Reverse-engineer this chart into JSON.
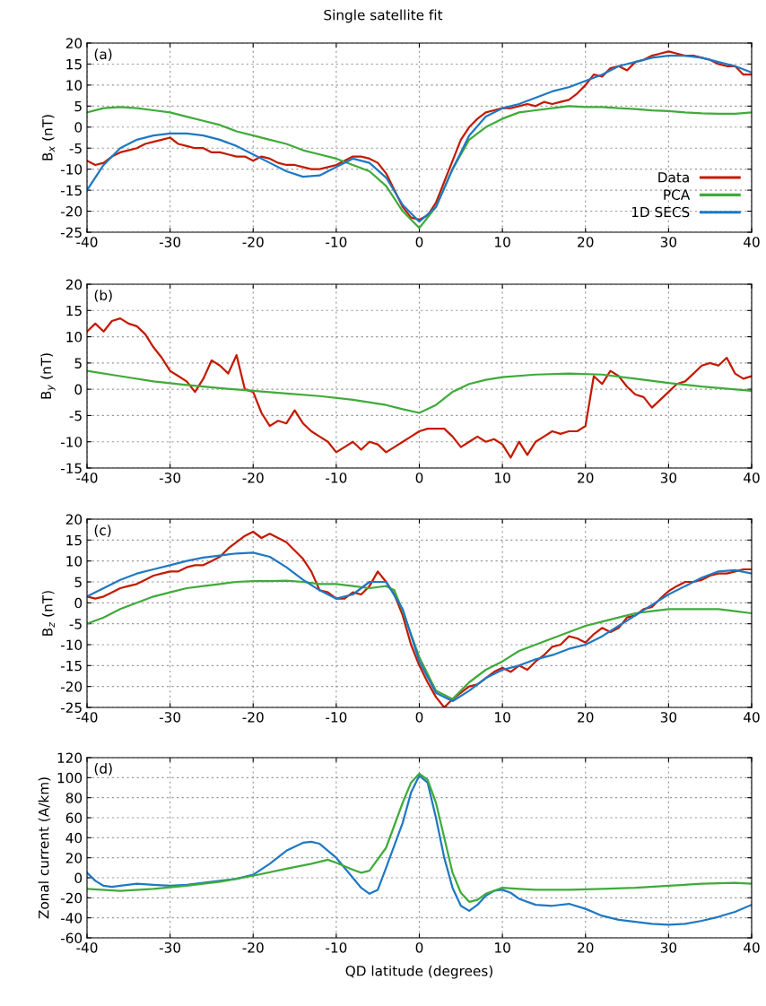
{
  "chart_data": [
    {
      "type": "line",
      "title": "Single satellite fit",
      "ylabel": "B$_{x}$ (nT)",
      "annotations": [
        "(a)"
      ],
      "xlim": [
        -40,
        40
      ],
      "xticks": [
        -40,
        -30,
        -20,
        -10,
        0,
        10,
        20,
        30,
        40
      ],
      "ylim": [
        -25,
        20
      ],
      "yticks": [
        -25,
        -20,
        -15,
        -10,
        -5,
        0,
        5,
        10,
        15,
        20
      ],
      "grid": true,
      "legend": "bottom right",
      "line_style": "solid",
      "marker": "none",
      "series": [
        {
          "name": "Data",
          "color": "#c41a00",
          "x": [
            -40,
            -39,
            -38,
            -37,
            -36,
            -35,
            -34,
            -33,
            -32,
            -31,
            -30,
            -29,
            -28,
            -27,
            -26,
            -25,
            -24,
            -23,
            -22,
            -21,
            -20,
            -19,
            -18,
            -17,
            -16,
            -15,
            -14,
            -13,
            -12,
            -11,
            -10,
            -9,
            -8,
            -7,
            -6,
            -5,
            -4,
            -3,
            -2,
            -1,
            0,
            1,
            2,
            3,
            4,
            5,
            6,
            7,
            8,
            9,
            10,
            11,
            12,
            13,
            14,
            15,
            16,
            17,
            18,
            19,
            20,
            21,
            22,
            23,
            24,
            25,
            26,
            27,
            28,
            29,
            30,
            31,
            32,
            33,
            34,
            35,
            36,
            37,
            38,
            39,
            40
          ],
          "values": [
            -8,
            -9,
            -8.5,
            -7,
            -6,
            -5.5,
            -5,
            -4,
            -3.5,
            -3,
            -2.5,
            -4,
            -4.5,
            -5,
            -5,
            -6,
            -6,
            -6.5,
            -7,
            -7,
            -8,
            -7,
            -7.5,
            -8.5,
            -9,
            -9,
            -9.5,
            -10,
            -10,
            -9.5,
            -9,
            -8,
            -7,
            -7,
            -7.5,
            -8.5,
            -11,
            -15,
            -19,
            -21.5,
            -22,
            -21,
            -18,
            -13,
            -8,
            -3,
            0,
            2,
            3.5,
            4,
            4.5,
            4.5,
            5,
            5.5,
            5,
            6,
            5.5,
            6,
            6.5,
            8,
            10,
            12.5,
            12,
            14,
            14.5,
            13.5,
            15.5,
            16,
            17,
            17.5,
            18,
            17.5,
            17,
            17,
            16.5,
            16,
            15,
            14.5,
            14.5,
            12.5,
            12.5
          ]
        },
        {
          "name": "PCA",
          "color": "#3fab3a",
          "x": [
            -40,
            -38,
            -36,
            -34,
            -32,
            -30,
            -28,
            -26,
            -24,
            -22,
            -20,
            -18,
            -16,
            -14,
            -12,
            -10,
            -8,
            -6,
            -4,
            -2,
            0,
            2,
            4,
            6,
            8,
            10,
            12,
            14,
            16,
            18,
            20,
            22,
            24,
            26,
            28,
            30,
            32,
            34,
            36,
            38,
            40
          ],
          "values": [
            3.5,
            4.5,
            4.8,
            4.5,
            4,
            3.5,
            2.5,
            1.5,
            0.5,
            -1,
            -2,
            -3,
            -4,
            -5.5,
            -6.5,
            -7.5,
            -9,
            -10.5,
            -14,
            -20,
            -24,
            -19,
            -10,
            -3,
            0,
            2,
            3.5,
            4,
            4.5,
            5,
            4.8,
            4.8,
            4.5,
            4.3,
            4,
            3.8,
            3.5,
            3.3,
            3.2,
            3.2,
            3.5
          ]
        },
        {
          "name": "1D SECS",
          "color": "#1f78c4",
          "x": [
            -40,
            -38,
            -36,
            -34,
            -32,
            -30,
            -28,
            -26,
            -24,
            -22,
            -20,
            -18,
            -16,
            -14,
            -12,
            -10,
            -8,
            -6,
            -4,
            -2,
            0,
            2,
            4,
            6,
            8,
            10,
            12,
            14,
            16,
            18,
            20,
            22,
            24,
            26,
            28,
            30,
            32,
            34,
            36,
            38,
            40
          ],
          "values": [
            -15,
            -9,
            -5,
            -3,
            -2,
            -1.5,
            -1.5,
            -2,
            -3,
            -4.5,
            -6.5,
            -8.5,
            -10.5,
            -11.8,
            -11.5,
            -9.5,
            -7.5,
            -8.5,
            -12,
            -18.5,
            -22.5,
            -19,
            -10,
            -2,
            2.5,
            4.5,
            5.5,
            7,
            8.5,
            9.5,
            11,
            12.5,
            14.5,
            15.5,
            16.5,
            17,
            17,
            16.5,
            15.5,
            14.5,
            13
          ]
        }
      ]
    },
    {
      "type": "line",
      "ylabel": "B$_{y}$ (nT)",
      "annotations": [
        "(b)"
      ],
      "xlim": [
        -40,
        40
      ],
      "xticks": [
        -40,
        -30,
        -20,
        -10,
        0,
        10,
        20,
        30,
        40
      ],
      "ylim": [
        -15,
        20
      ],
      "yticks": [
        -15,
        -10,
        -5,
        0,
        5,
        10,
        15,
        20
      ],
      "grid": true,
      "line_style": "solid",
      "marker": "none",
      "series": [
        {
          "color": "#c41a00",
          "x": [
            -40,
            -39,
            -38,
            -37,
            -36,
            -35,
            -34,
            -33,
            -32,
            -31,
            -30,
            -29,
            -28,
            -27,
            -26,
            -25,
            -24,
            -23,
            -22,
            -21,
            -20,
            -19,
            -18,
            -17,
            -16,
            -15,
            -14,
            -13,
            -12,
            -11,
            -10,
            -9,
            -8,
            -7,
            -6,
            -5,
            -4,
            -3,
            -2,
            -1,
            0,
            1,
            2,
            3,
            4,
            5,
            6,
            7,
            8,
            9,
            10,
            11,
            12,
            13,
            14,
            15,
            16,
            17,
            18,
            19,
            20,
            21,
            22,
            23,
            24,
            25,
            26,
            27,
            28,
            29,
            30,
            31,
            32,
            33,
            34,
            35,
            36,
            37,
            38,
            39,
            40
          ],
          "values": [
            11,
            12.5,
            11,
            13,
            13.5,
            12.5,
            12,
            10.5,
            8,
            6,
            3.5,
            2.5,
            1.5,
            -0.5,
            2,
            5.5,
            4.5,
            3,
            6.5,
            0,
            -0.5,
            -4.5,
            -7,
            -6,
            -6.5,
            -4,
            -6.5,
            -8,
            -9,
            -10,
            -12,
            -11,
            -10,
            -11.5,
            -10,
            -10.5,
            -12,
            -11,
            -10,
            -9,
            -8,
            -7.5,
            -7.5,
            -7.5,
            -9,
            -11,
            -10,
            -9,
            -10,
            -9.5,
            -10.5,
            -13,
            -10,
            -12.5,
            -10,
            -9,
            -8,
            -8.5,
            -8,
            -8,
            -7,
            2.5,
            1,
            3.5,
            2.5,
            0.5,
            -1,
            -1.5,
            -3.5,
            -2,
            -0.5,
            1,
            1.5,
            3,
            4.5,
            5,
            4.5,
            6,
            3,
            2,
            2.5
          ]
        },
        {
          "color": "#3fab3a",
          "x": [
            -40,
            -36,
            -32,
            -28,
            -24,
            -20,
            -16,
            -12,
            -8,
            -4,
            -2,
            0,
            2,
            4,
            6,
            8,
            10,
            14,
            18,
            22,
            26,
            30,
            34,
            40
          ],
          "values": [
            3.5,
            2.5,
            1.5,
            0.8,
            0.2,
            -0.3,
            -0.8,
            -1.3,
            -2,
            -3,
            -3.8,
            -4.5,
            -3,
            -0.5,
            1,
            1.8,
            2.3,
            2.8,
            3,
            2.8,
            2,
            1.2,
            0.5,
            -0.3
          ]
        }
      ]
    },
    {
      "type": "line",
      "ylabel": "B$_{z}$ (nT)",
      "annotations": [
        "(c)"
      ],
      "xlim": [
        -40,
        40
      ],
      "xticks": [
        -40,
        -30,
        -20,
        -10,
        0,
        10,
        20,
        30,
        40
      ],
      "ylim": [
        -25,
        20
      ],
      "yticks": [
        -25,
        -20,
        -15,
        -10,
        -5,
        0,
        5,
        10,
        15,
        20
      ],
      "grid": true,
      "line_style": "solid",
      "marker": "none",
      "series": [
        {
          "color": "#c41a00",
          "x": [
            -40,
            -39,
            -38,
            -37,
            -36,
            -35,
            -34,
            -33,
            -32,
            -31,
            -30,
            -29,
            -28,
            -27,
            -26,
            -25,
            -24,
            -23,
            -22,
            -21,
            -20,
            -19,
            -18,
            -17,
            -16,
            -15,
            -14,
            -13,
            -12,
            -11,
            -10,
            -9,
            -8,
            -7,
            -6,
            -5,
            -4,
            -3,
            -2,
            -1,
            0,
            1,
            2,
            3,
            4,
            5,
            6,
            7,
            8,
            9,
            10,
            11,
            12,
            13,
            14,
            15,
            16,
            17,
            18,
            19,
            20,
            21,
            22,
            23,
            24,
            25,
            26,
            27,
            28,
            29,
            30,
            31,
            32,
            33,
            34,
            35,
            36,
            37,
            38,
            39,
            40
          ],
          "values": [
            1.5,
            1,
            1.5,
            2.5,
            3.5,
            4,
            4.5,
            5.5,
            6.5,
            7,
            7.5,
            7.5,
            8.5,
            9,
            9,
            10,
            11,
            13,
            14.5,
            16,
            17,
            15.5,
            16.5,
            15.5,
            14.5,
            12.5,
            10.5,
            7.5,
            3,
            2.5,
            1,
            1,
            2.5,
            2,
            4,
            7.5,
            5,
            2,
            -3,
            -10,
            -15,
            -19,
            -22.5,
            -25,
            -23,
            -21.5,
            -20,
            -19.5,
            -18,
            -16.5,
            -15.5,
            -16.5,
            -15,
            -16,
            -14,
            -12.5,
            -10.5,
            -10,
            -8,
            -8.5,
            -9.5,
            -7.5,
            -6,
            -7,
            -6,
            -3.5,
            -3,
            -1.5,
            -1,
            1,
            2.8,
            4,
            5,
            5,
            5.5,
            6.5,
            7,
            7,
            7.5,
            8,
            8
          ]
        },
        {
          "color": "#3fab3a",
          "x": [
            -40,
            -38,
            -36,
            -34,
            -32,
            -30,
            -28,
            -26,
            -24,
            -22,
            -20,
            -18,
            -16,
            -14,
            -12,
            -10,
            -8,
            -6,
            -4,
            -3,
            -2,
            0,
            2,
            4,
            6,
            8,
            10,
            12,
            14,
            16,
            18,
            20,
            22,
            24,
            26,
            28,
            30,
            32,
            34,
            36,
            38,
            40
          ],
          "values": [
            -5,
            -3.5,
            -1.5,
            0,
            1.5,
            2.5,
            3.5,
            4,
            4.5,
            5,
            5.2,
            5.2,
            5.3,
            5,
            4.5,
            4.5,
            4,
            3.5,
            4,
            3,
            -2,
            -13,
            -21,
            -23,
            -19,
            -16,
            -14,
            -11.5,
            -10,
            -8.5,
            -7,
            -5.5,
            -4.5,
            -3.5,
            -2.5,
            -2,
            -1.5,
            -1.5,
            -1.5,
            -1.5,
            -2,
            -2.5
          ]
        },
        {
          "color": "#1f78c4",
          "x": [
            -40,
            -38,
            -36,
            -34,
            -32,
            -30,
            -28,
            -26,
            -24,
            -22,
            -20,
            -18,
            -16,
            -14,
            -12,
            -10,
            -8,
            -6,
            -4,
            -2,
            0,
            2,
            4,
            6,
            8,
            10,
            12,
            14,
            16,
            18,
            20,
            22,
            24,
            26,
            28,
            30,
            32,
            34,
            36,
            38,
            40
          ],
          "values": [
            1.5,
            3.5,
            5.5,
            7,
            8,
            9,
            10,
            10.8,
            11.3,
            11.8,
            12,
            11,
            8.5,
            5.5,
            3,
            1,
            2,
            5,
            5,
            -1.5,
            -14,
            -21.5,
            -23.5,
            -21,
            -18,
            -16,
            -15,
            -13.5,
            -12.5,
            -11,
            -10,
            -8,
            -5.5,
            -3,
            -0.5,
            2,
            4,
            6,
            7.5,
            7.8,
            7
          ]
        }
      ]
    },
    {
      "type": "line",
      "xlabel": "QD latitude (degrees)",
      "ylabel": "Zonal current (A/km)",
      "annotations": [
        "(d)"
      ],
      "xlim": [
        -40,
        40
      ],
      "xticks": [
        -40,
        -30,
        -20,
        -10,
        0,
        10,
        20,
        30,
        40
      ],
      "ylim": [
        -60,
        120
      ],
      "yticks": [
        -60,
        -40,
        -20,
        0,
        20,
        40,
        60,
        80,
        100,
        120
      ],
      "grid": true,
      "line_style": "solid",
      "marker": "none",
      "series": [
        {
          "color": "#1f78c4",
          "x": [
            -40,
            -39,
            -38,
            -37,
            -36,
            -34,
            -32,
            -30,
            -28,
            -26,
            -24,
            -22,
            -20,
            -18,
            -16,
            -14,
            -13,
            -12,
            -10,
            -8,
            -7,
            -6,
            -5,
            -4,
            -2,
            -1,
            0,
            1,
            2,
            3,
            4,
            5,
            6,
            7,
            8,
            9,
            10,
            11,
            12,
            14,
            16,
            18,
            20,
            22,
            24,
            26,
            28,
            30,
            32,
            34,
            36,
            38,
            40
          ],
          "values": [
            5,
            -3,
            -8,
            -9,
            -8,
            -6,
            -7,
            -8,
            -7,
            -5,
            -3,
            -1,
            3,
            14,
            27,
            35,
            36,
            34,
            20,
            0,
            -10,
            -16,
            -12,
            10,
            55,
            85,
            102,
            95,
            60,
            20,
            -10,
            -28,
            -33,
            -27,
            -18,
            -13,
            -12,
            -15,
            -21,
            -27,
            -28,
            -26,
            -31,
            -38,
            -42,
            -44,
            -46,
            -47,
            -46,
            -43,
            -39,
            -34,
            -27
          ]
        },
        {
          "color": "#3fab3a",
          "x": [
            -40,
            -36,
            -32,
            -28,
            -24,
            -20,
            -16,
            -13,
            -11,
            -10,
            -8,
            -7,
            -6,
            -4,
            -2,
            -1,
            0,
            1,
            2,
            3,
            4,
            5,
            6,
            7,
            8,
            10,
            12,
            14,
            18,
            22,
            26,
            30,
            34,
            38,
            40
          ],
          "values": [
            -11,
            -13,
            -11,
            -8,
            -4,
            2,
            9,
            14,
            18,
            15,
            8,
            5,
            7,
            30,
            75,
            95,
            104,
            98,
            75,
            40,
            5,
            -15,
            -24,
            -22,
            -16,
            -10,
            -11,
            -12,
            -12,
            -11,
            -10,
            -8,
            -6,
            -5,
            -6
          ]
        }
      ]
    }
  ]
}
